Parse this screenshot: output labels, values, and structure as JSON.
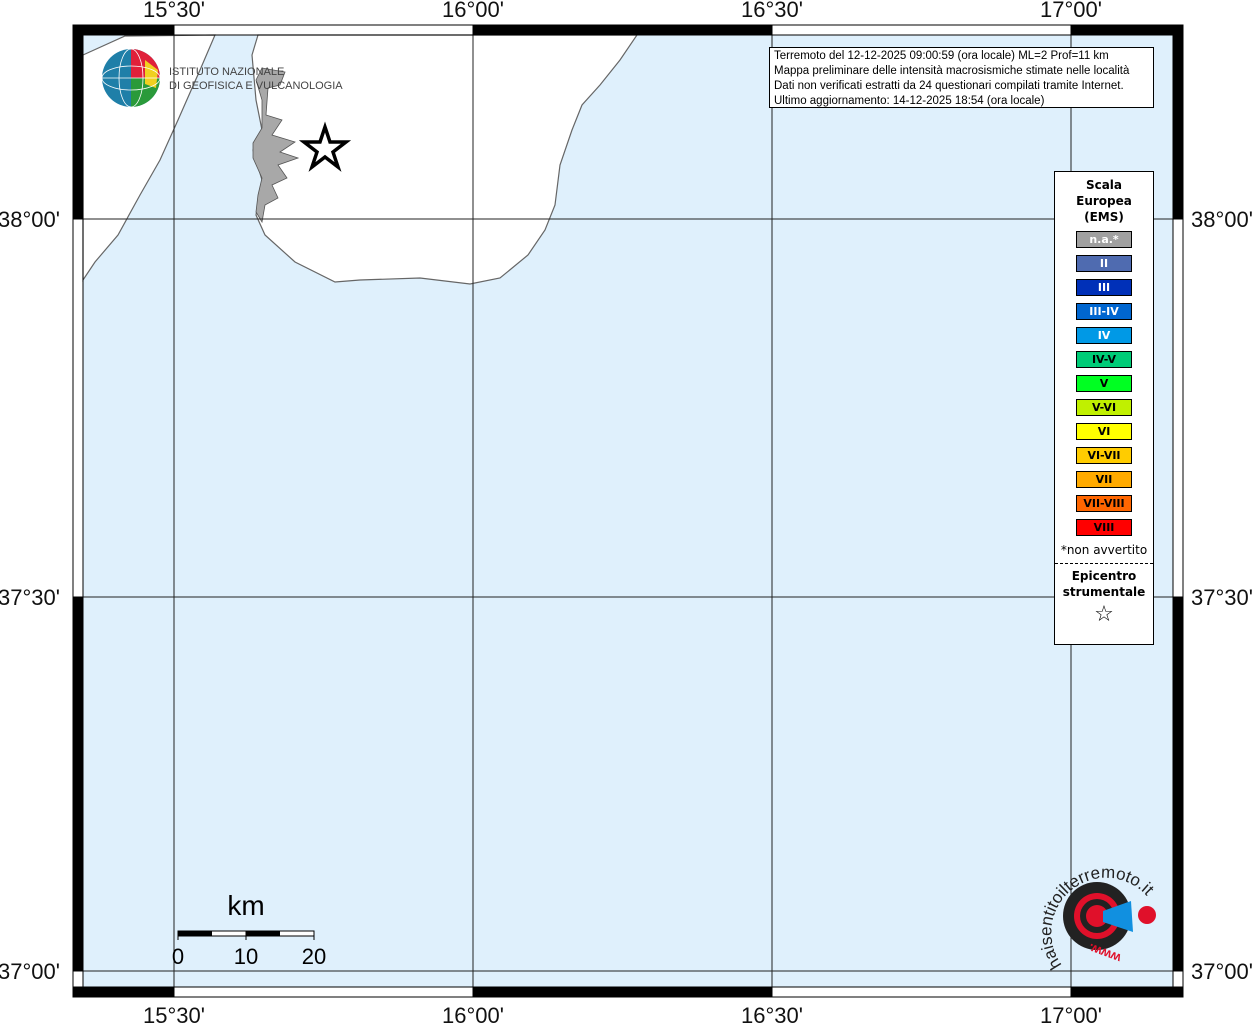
{
  "map": {
    "lon_labels": [
      "15°30'",
      "16°00'",
      "16°30'",
      "17°00'"
    ],
    "lat_labels": [
      "38°00'",
      "37°30'",
      "37°00'"
    ],
    "colors": {
      "sea": "#dff0fc",
      "land": "#ffffff",
      "felt_area": "#a8a8a8"
    }
  },
  "info": {
    "line1": "Terremoto del 12-12-2025 09:00:59 (ora locale) ML=2 Prof=11 km",
    "line2": "Mappa preliminare delle intensità macrosismiche stimate nelle località",
    "line3": "Dati non verificati estratti da 24 questionari compilati tramite Internet.",
    "line4": "Ultimo aggiornamento: 14-12-2025 18:54 (ora locale)"
  },
  "ingv_logo": {
    "line1": "ISTITUTO NAZIONALE",
    "line2": "DI GEOFISICA E VULCANOLOGIA"
  },
  "legend": {
    "title1": "Scala",
    "title2": "Europea",
    "title3": "(EMS)",
    "items": [
      {
        "label": "n.a.*",
        "color": "#a0a0a0",
        "text_color": "#ffffff"
      },
      {
        "label": "II",
        "color": "#4f6bb0",
        "text_color": "#ffffff"
      },
      {
        "label": "III",
        "color": "#0030b8",
        "text_color": "#ffffff"
      },
      {
        "label": "III-IV",
        "color": "#0066d0",
        "text_color": "#ffffff"
      },
      {
        "label": "IV",
        "color": "#0099e6",
        "text_color": "#ffffff"
      },
      {
        "label": "IV-V",
        "color": "#00cc77",
        "text_color": "#000000"
      },
      {
        "label": "V",
        "color": "#00ff22",
        "text_color": "#000000"
      },
      {
        "label": "V-VI",
        "color": "#c0f000",
        "text_color": "#000000"
      },
      {
        "label": "VI",
        "color": "#ffff00",
        "text_color": "#000000"
      },
      {
        "label": "VI-VII",
        "color": "#ffcc00",
        "text_color": "#000000"
      },
      {
        "label": "VII",
        "color": "#ffaa00",
        "text_color": "#000000"
      },
      {
        "label": "VII-VIII",
        "color": "#ff6600",
        "text_color": "#000000"
      },
      {
        "label": "VIII",
        "color": "#ff0000",
        "text_color": "#000000"
      }
    ],
    "note": "*non avvertito",
    "epi1": "Epicentro",
    "epi2": "strumentale",
    "epi_symbol": "☆"
  },
  "scale_bar": {
    "unit": "km",
    "ticks": [
      "0",
      "10",
      "20"
    ]
  },
  "hsi_logo": {
    "text": "haisentitoilterremoto.it",
    "prefix": "www."
  }
}
